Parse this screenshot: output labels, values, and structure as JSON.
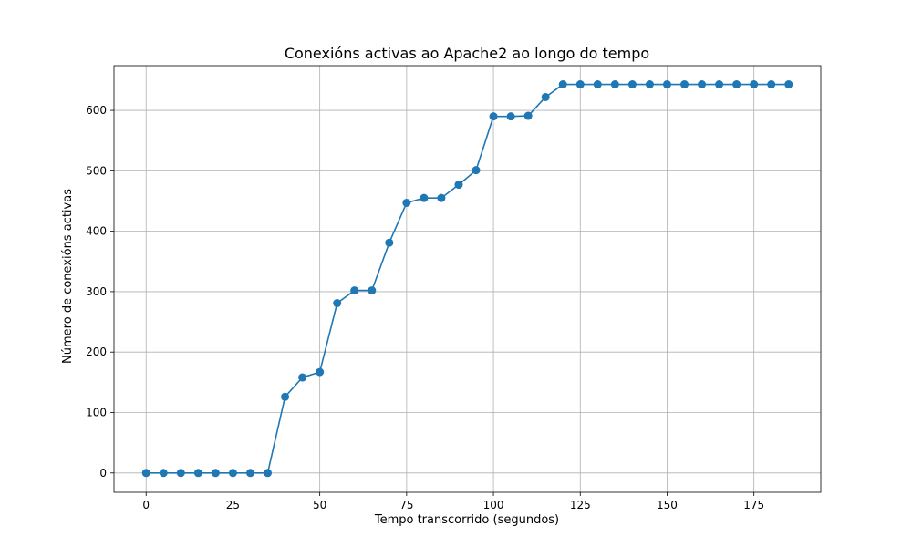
{
  "chart_data": {
    "type": "line",
    "title": "Conexións activas ao Apache2 ao longo do tempo",
    "xlabel": "Tempo transcorrido (segundos)",
    "ylabel": "Número de conexións activas",
    "xlim": [
      -9.25,
      194.25
    ],
    "ylim": [
      -32,
      674
    ],
    "xticks": [
      0,
      25,
      50,
      75,
      100,
      125,
      150,
      175
    ],
    "yticks": [
      0,
      100,
      200,
      300,
      400,
      500,
      600
    ],
    "grid": true,
    "series": [
      {
        "color": "#1f77b4",
        "marker": "circle",
        "x": [
          0,
          5,
          10,
          15,
          20,
          25,
          30,
          35,
          40,
          45,
          50,
          55,
          60,
          65,
          70,
          75,
          80,
          85,
          90,
          95,
          100,
          105,
          110,
          115,
          120,
          125,
          130,
          135,
          140,
          145,
          150,
          155,
          160,
          165,
          170,
          175,
          180,
          185
        ],
        "y": [
          0,
          0,
          0,
          0,
          0,
          0,
          0,
          0,
          126,
          158,
          167,
          281,
          302,
          302,
          381,
          447,
          455,
          455,
          477,
          501,
          590,
          590,
          591,
          622,
          643,
          643,
          643,
          643,
          643,
          643,
          643,
          643,
          643,
          643,
          643,
          643,
          643,
          643
        ]
      }
    ]
  }
}
